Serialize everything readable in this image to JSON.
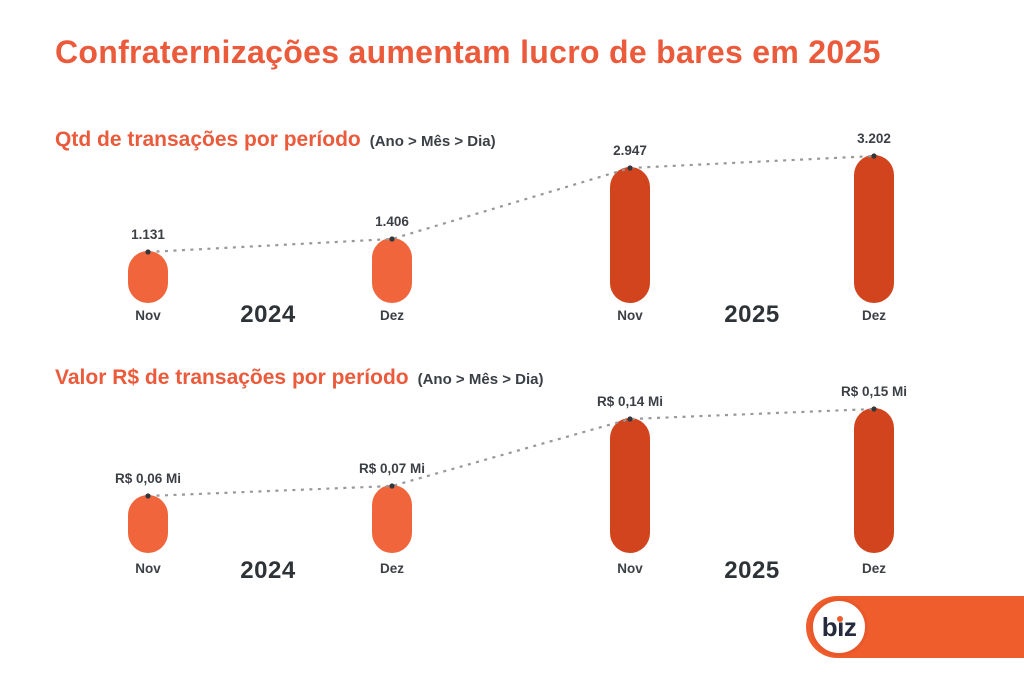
{
  "title": "Confraternizações aumentam lucro de bares em 2025",
  "colors": {
    "accent": "#EB5A3B",
    "bar_2024": "#F0653B",
    "bar_2025": "#D2441D",
    "trend_line": "#97989A",
    "trend_dot": "#33363B",
    "dark_text": "#3C4046",
    "logo_bar": "#EF5D2C",
    "logo_text": "#262A3F"
  },
  "chart_data": [
    {
      "type": "bar",
      "title": "Qtd de transações por período",
      "subtitle": "(Ano > Mês > Dia)",
      "categories": [
        "Nov",
        "Dez",
        "Nov",
        "Dez"
      ],
      "year_labels": [
        "2024",
        "2025"
      ],
      "values": [
        1131,
        1406,
        2947,
        3202
      ],
      "value_labels": [
        "1.131",
        "1.406",
        "2.947",
        "3.202"
      ],
      "trendline": "dashed",
      "grid": "off",
      "legend": "none"
    },
    {
      "type": "bar",
      "title": "Valor R$ de transações por período",
      "subtitle": "(Ano > Mês > Dia)",
      "categories": [
        "Nov",
        "Dez",
        "Nov",
        "Dez"
      ],
      "year_labels": [
        "2024",
        "2025"
      ],
      "values": [
        0.06,
        0.07,
        0.14,
        0.15
      ],
      "value_labels": [
        "R$ 0,06 Mi",
        "R$ 0,07 Mi",
        "R$ 0,14 Mi",
        "R$ 0,15 Mi"
      ],
      "unit": "R$ Mi",
      "trendline": "dashed",
      "grid": "off",
      "legend": "none"
    }
  ],
  "logo": {
    "text": "biz"
  }
}
